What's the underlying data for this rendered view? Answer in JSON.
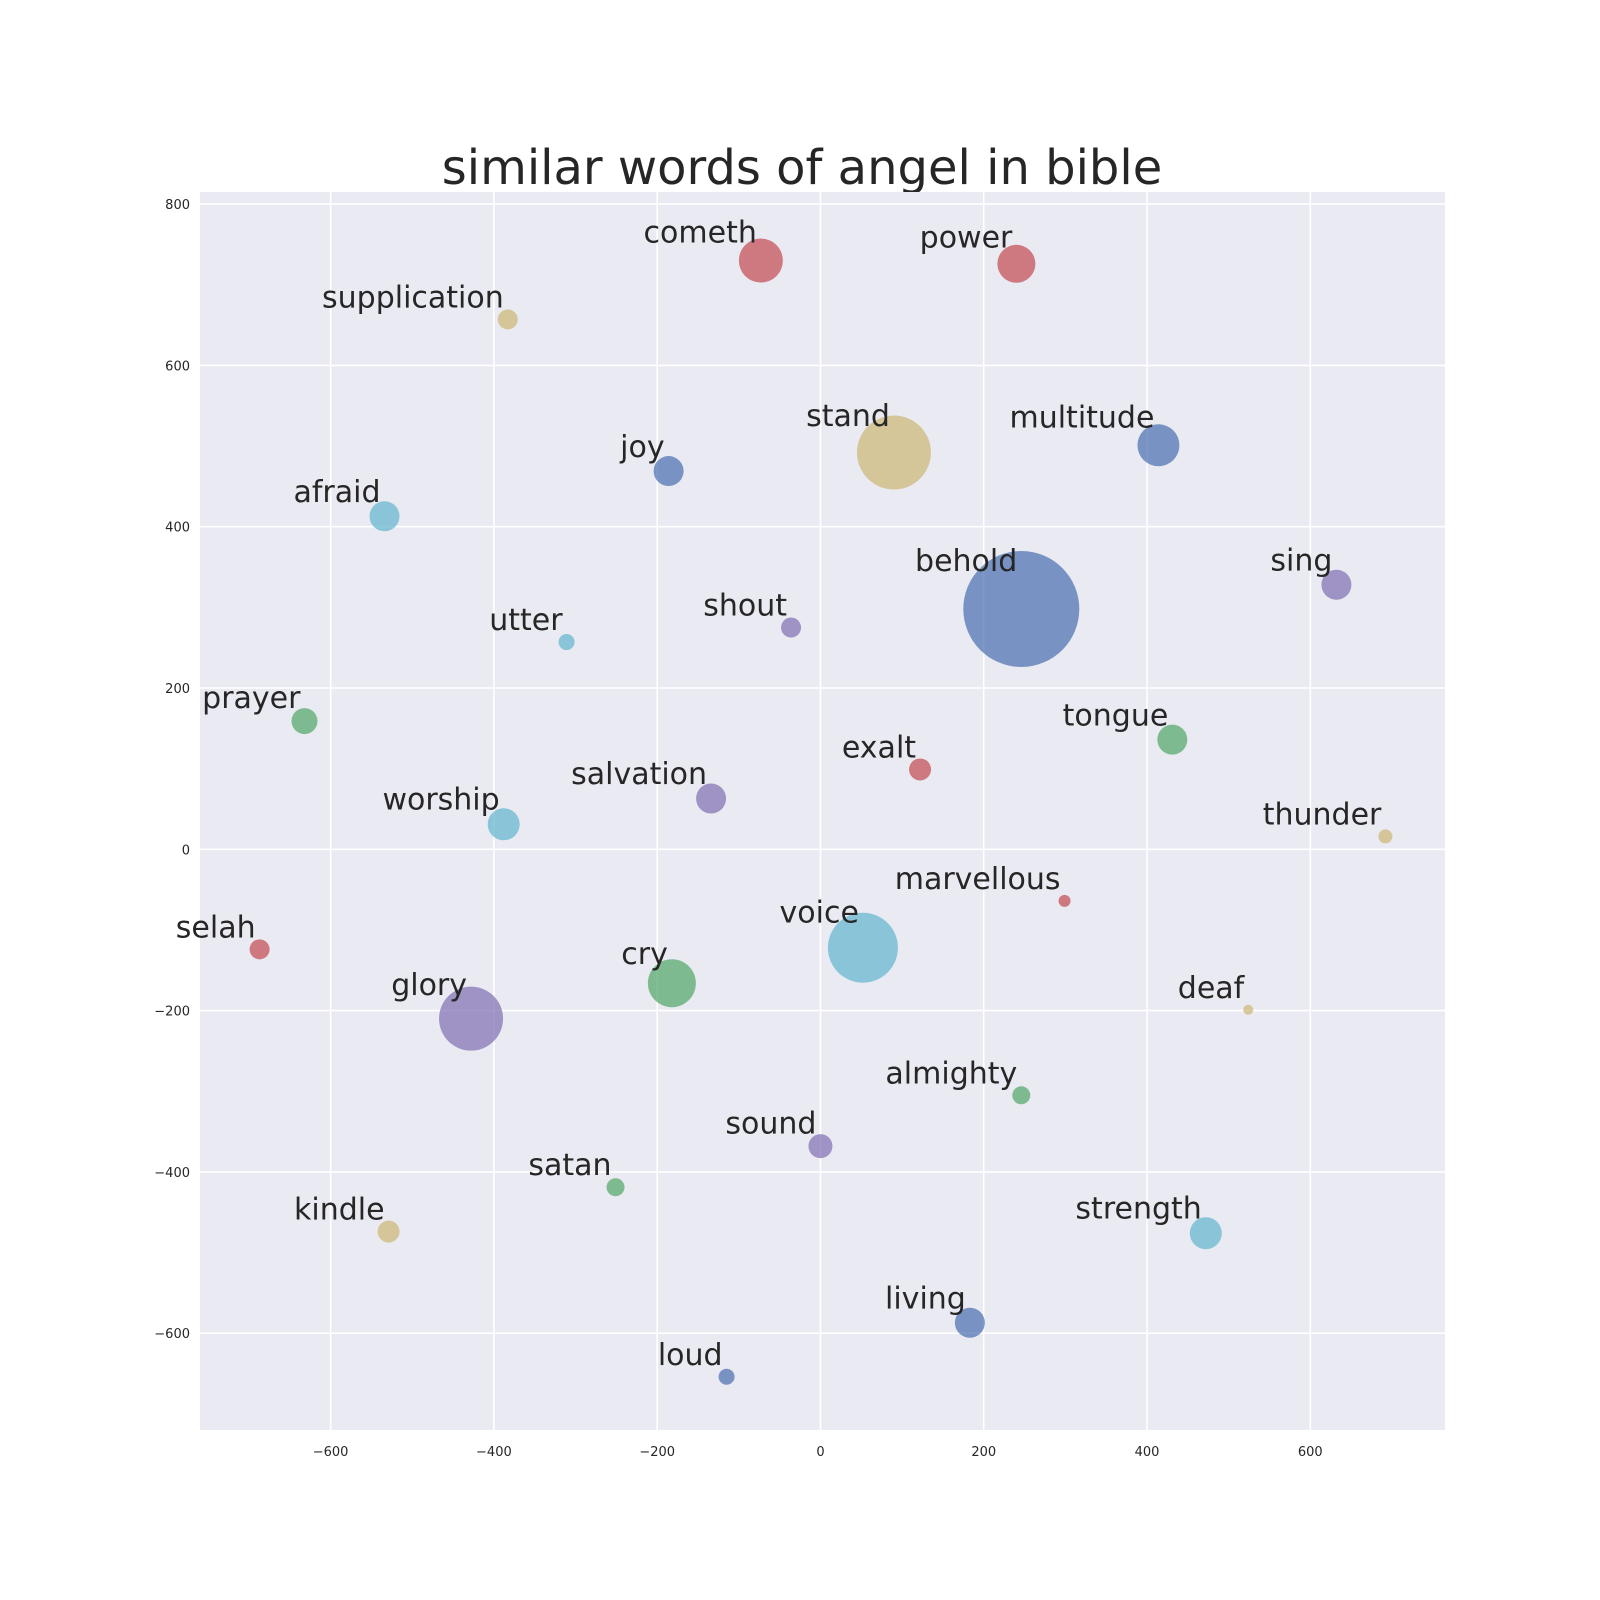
{
  "chart_data": {
    "type": "scatter",
    "title": "similar words of angel in bible",
    "xlabel": "",
    "ylabel": "",
    "xlim": [
      -760,
      765
    ],
    "ylim": [
      -720,
      815
    ],
    "xticks": [
      -600,
      -400,
      -200,
      0,
      200,
      400,
      600
    ],
    "yticks": [
      -600,
      -400,
      -200,
      0,
      200,
      400,
      600,
      800
    ],
    "grid": true,
    "colors": {
      "blue": "#4c72b0",
      "green": "#55a868",
      "red": "#c44e52",
      "purple": "#8172b2",
      "yellow": "#ccb974",
      "cyan": "#64b5cd",
      "background": "#eaeaf2"
    },
    "points": [
      {
        "word": "cometh",
        "x": -73,
        "y": 730,
        "size": 22,
        "color": "red"
      },
      {
        "word": "power",
        "x": 240,
        "y": 726,
        "size": 19,
        "color": "red"
      },
      {
        "word": "supplication",
        "x": -383,
        "y": 657,
        "size": 10,
        "color": "yellow"
      },
      {
        "word": "joy",
        "x": -186,
        "y": 469,
        "size": 15,
        "color": "blue"
      },
      {
        "word": "stand",
        "x": 90,
        "y": 492,
        "size": 37,
        "color": "yellow"
      },
      {
        "word": "multitude",
        "x": 414,
        "y": 501,
        "size": 21,
        "color": "blue"
      },
      {
        "word": "afraid",
        "x": -534,
        "y": 413,
        "size": 15,
        "color": "cyan"
      },
      {
        "word": "sing",
        "x": 632,
        "y": 328,
        "size": 15,
        "color": "purple"
      },
      {
        "word": "behold",
        "x": 246,
        "y": 298,
        "size": 58,
        "color": "blue"
      },
      {
        "word": "utter",
        "x": -311,
        "y": 257,
        "size": 8,
        "color": "cyan"
      },
      {
        "word": "shout",
        "x": -36,
        "y": 275,
        "size": 10,
        "color": "purple"
      },
      {
        "word": "prayer",
        "x": -632,
        "y": 159,
        "size": 13,
        "color": "green"
      },
      {
        "word": "tongue",
        "x": 431,
        "y": 136,
        "size": 15,
        "color": "green"
      },
      {
        "word": "exalt",
        "x": 122,
        "y": 99,
        "size": 11,
        "color": "red"
      },
      {
        "word": "salvation",
        "x": -134,
        "y": 63,
        "size": 15,
        "color": "purple"
      },
      {
        "word": "worship",
        "x": -388,
        "y": 31,
        "size": 16,
        "color": "cyan"
      },
      {
        "word": "thunder",
        "x": 692,
        "y": 16,
        "size": 7,
        "color": "yellow"
      },
      {
        "word": "marvellous",
        "x": 299,
        "y": -64,
        "size": 6,
        "color": "red"
      },
      {
        "word": "selah",
        "x": -687,
        "y": -124,
        "size": 10,
        "color": "red"
      },
      {
        "word": "voice",
        "x": 52,
        "y": -122,
        "size": 35,
        "color": "cyan"
      },
      {
        "word": "cry",
        "x": -182,
        "y": -166,
        "size": 24,
        "color": "green"
      },
      {
        "word": "deaf",
        "x": 524,
        "y": -199,
        "size": 5,
        "color": "yellow"
      },
      {
        "word": "glory",
        "x": -428,
        "y": -210,
        "size": 32,
        "color": "purple"
      },
      {
        "word": "almighty",
        "x": 246,
        "y": -305,
        "size": 9,
        "color": "green"
      },
      {
        "word": "sound",
        "x": 0,
        "y": -368,
        "size": 12,
        "color": "purple"
      },
      {
        "word": "satan",
        "x": -251,
        "y": -419,
        "size": 9,
        "color": "green"
      },
      {
        "word": "kindle",
        "x": -529,
        "y": -474,
        "size": 11,
        "color": "yellow"
      },
      {
        "word": "strength",
        "x": 472,
        "y": -476,
        "size": 16,
        "color": "cyan"
      },
      {
        "word": "living",
        "x": 183,
        "y": -587,
        "size": 15,
        "color": "blue"
      },
      {
        "word": "loud",
        "x": -115,
        "y": -654,
        "size": 8,
        "color": "blue"
      }
    ]
  }
}
